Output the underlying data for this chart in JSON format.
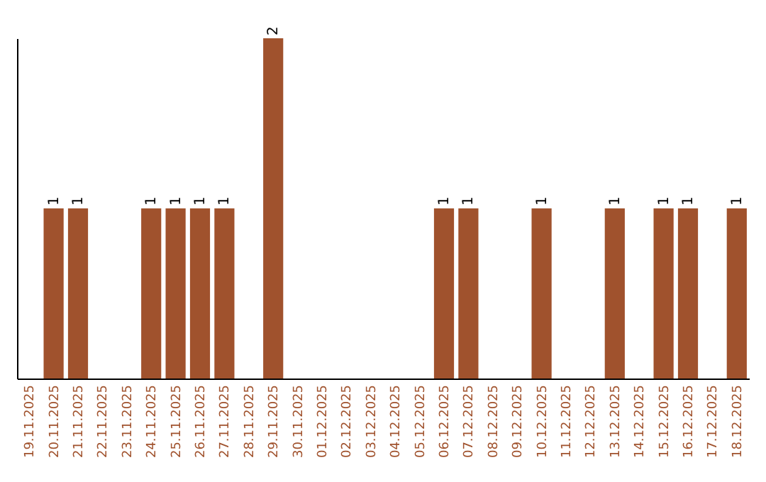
{
  "chart_data": {
    "type": "bar",
    "categories": [
      "19.11.2025",
      "20.11.2025",
      "21.11.2025",
      "22.11.2025",
      "23.11.2025",
      "24.11.2025",
      "25.11.2025",
      "26.11.2025",
      "27.11.2025",
      "28.11.2025",
      "29.11.2025",
      "30.11.2025",
      "01.12.2025",
      "02.12.2025",
      "03.12.2025",
      "04.12.2025",
      "05.12.2025",
      "06.12.2025",
      "07.12.2025",
      "08.12.2025",
      "09.12.2025",
      "10.12.2025",
      "11.12.2025",
      "12.12.2025",
      "13.12.2025",
      "14.12.2025",
      "15.12.2025",
      "16.12.2025",
      "17.12.2025",
      "18.12.2025"
    ],
    "values": [
      0,
      1,
      1,
      0,
      0,
      1,
      1,
      1,
      1,
      0,
      2,
      0,
      0,
      0,
      0,
      0,
      0,
      1,
      1,
      0,
      0,
      1,
      0,
      0,
      1,
      0,
      1,
      1,
      0,
      1
    ],
    "value_labels": [
      null,
      "1",
      "1",
      null,
      null,
      "1",
      "1",
      "1",
      "1",
      null,
      "2",
      null,
      null,
      null,
      null,
      null,
      null,
      "1",
      "1",
      null,
      null,
      "1",
      null,
      null,
      "1",
      null,
      "1",
      "1",
      null,
      "1"
    ],
    "color": "#a0522d",
    "tick_labels": "x",
    "grid": false
  }
}
